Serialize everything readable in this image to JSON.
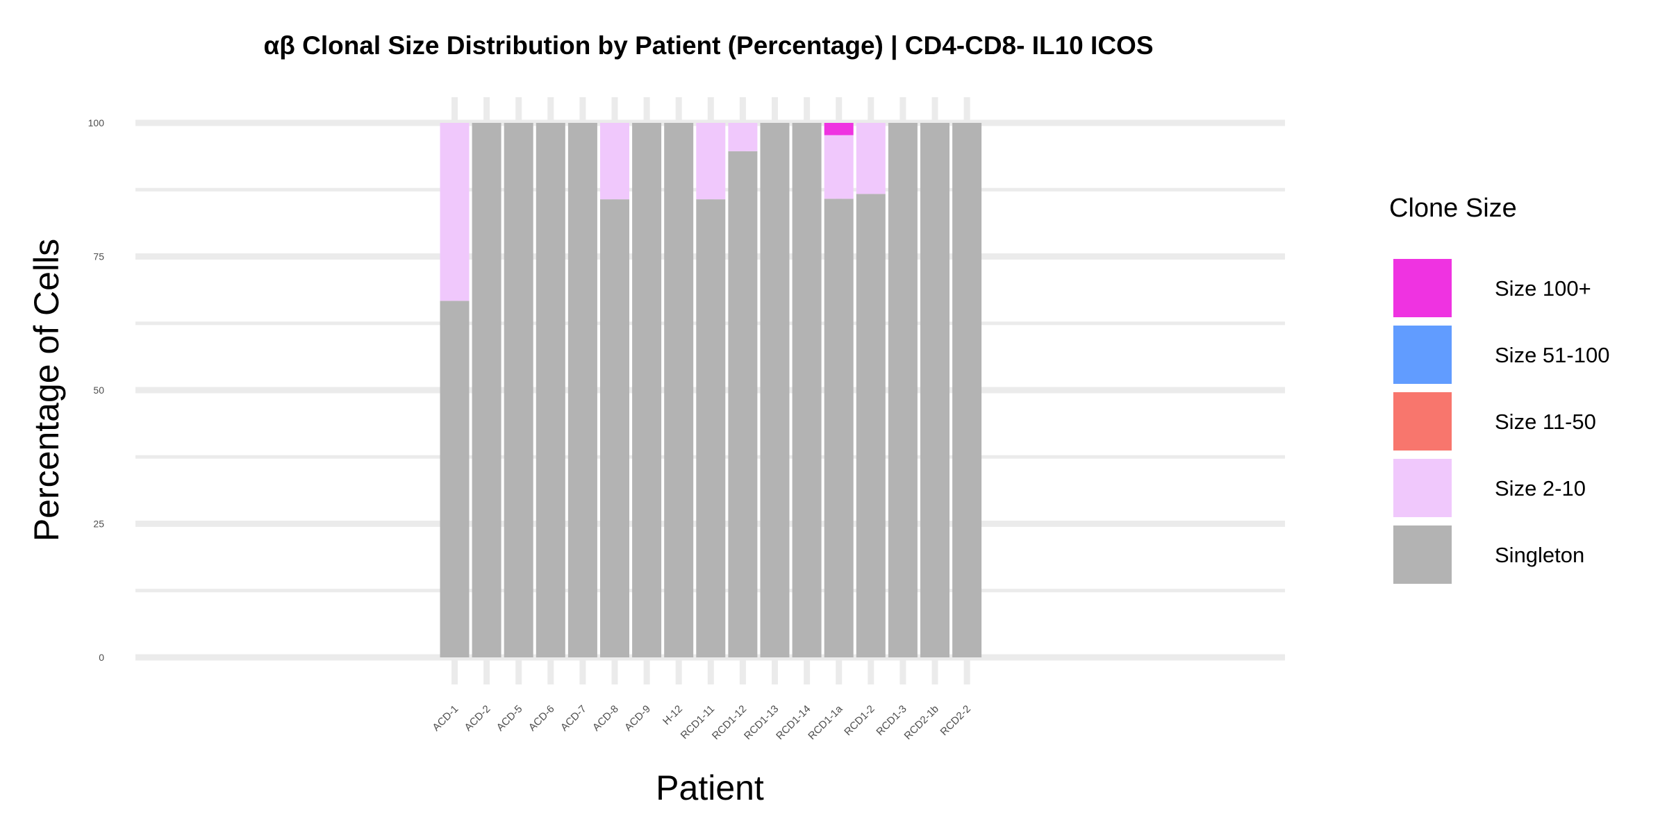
{
  "chart_data": {
    "type": "bar",
    "stacked": true,
    "title": "αβ Clonal Size Distribution by Patient (Percentage) | CD4-CD8- IL10 ICOS",
    "xlabel": "Patient",
    "ylabel": "Percentage of Cells",
    "ylim": [
      0,
      100
    ],
    "yticks": [
      0,
      25,
      50,
      75,
      100
    ],
    "grid": true,
    "legend_position": "right",
    "legend_title": "Clone Size",
    "categories": [
      "ACD-1",
      "ACD-2",
      "ACD-5",
      "ACD-6",
      "ACD-7",
      "ACD-8",
      "ACD-9",
      "H-12",
      "RCD1-11",
      "RCD1-12",
      "RCD1-13",
      "RCD1-14",
      "RCD1-1a",
      "RCD1-2",
      "RCD1-3",
      "RCD2-1b",
      "RCD2-2"
    ],
    "series": [
      {
        "name": "Singleton",
        "color": "#b3b3b3",
        "values": [
          66.7,
          100,
          100,
          100,
          100,
          85.7,
          100,
          100,
          85.7,
          94.7,
          100,
          100,
          85.8,
          86.7,
          100,
          100,
          100
        ]
      },
      {
        "name": "Size 2-10",
        "color": "#f0c8fc",
        "values": [
          33.3,
          0,
          0,
          0,
          0,
          14.3,
          0,
          0,
          14.3,
          5.3,
          0,
          0,
          11.9,
          13.3,
          0,
          0,
          0
        ]
      },
      {
        "name": "Size 11-50",
        "color": "#f8766d",
        "values": [
          0,
          0,
          0,
          0,
          0,
          0,
          0,
          0,
          0,
          0,
          0,
          0,
          0,
          0,
          0,
          0,
          0
        ]
      },
      {
        "name": "Size 51-100",
        "color": "#619cff",
        "values": [
          0,
          0,
          0,
          0,
          0,
          0,
          0,
          0,
          0,
          0,
          0,
          0,
          0,
          0,
          0,
          0,
          0
        ]
      },
      {
        "name": "Size 100+",
        "color": "#ef33e1",
        "values": [
          0,
          0,
          0,
          0,
          0,
          0,
          0,
          0,
          0,
          0,
          0,
          0,
          2.3,
          0,
          0,
          0,
          0
        ]
      }
    ],
    "legend_order": [
      "Size 100+",
      "Size 51-100",
      "Size 11-50",
      "Size 2-10",
      "Singleton"
    ]
  }
}
